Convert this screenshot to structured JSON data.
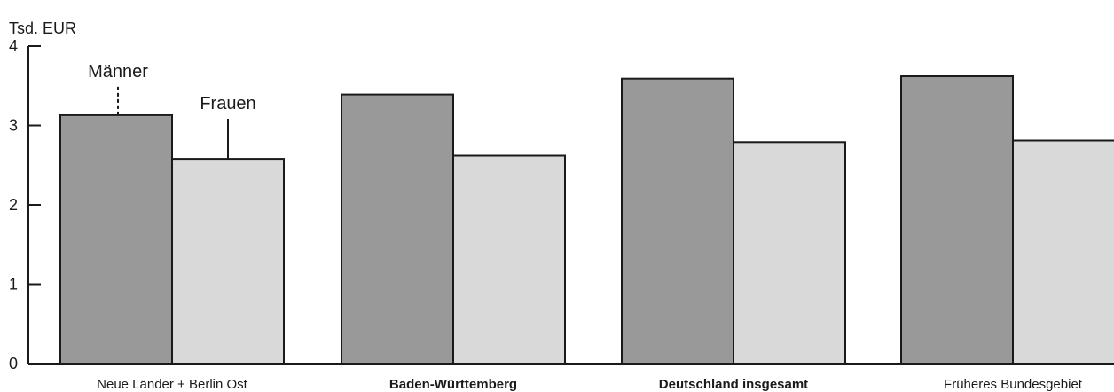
{
  "chart_data": {
    "type": "bar",
    "ylabel": "Tsd. EUR",
    "ylim": [
      0,
      4
    ],
    "yticks": [
      0,
      1,
      2,
      3,
      4
    ],
    "grid": false,
    "legend": "inline-annotations",
    "categories": [
      {
        "label": "Neue Länder + Berlin Ost",
        "bold": false
      },
      {
        "label": "Baden-Württemberg",
        "bold": true
      },
      {
        "label": "Deutschland insgesamt",
        "bold": true
      },
      {
        "label": "Früheres Bundesgebiet",
        "bold": false
      }
    ],
    "series": [
      {
        "name": "Männer",
        "color": "#999999",
        "values": [
          3.13,
          3.39,
          3.59,
          3.62
        ]
      },
      {
        "name": "Frauen",
        "color": "#d9d9d9",
        "values": [
          2.58,
          2.62,
          2.79,
          2.81
        ]
      }
    ]
  }
}
